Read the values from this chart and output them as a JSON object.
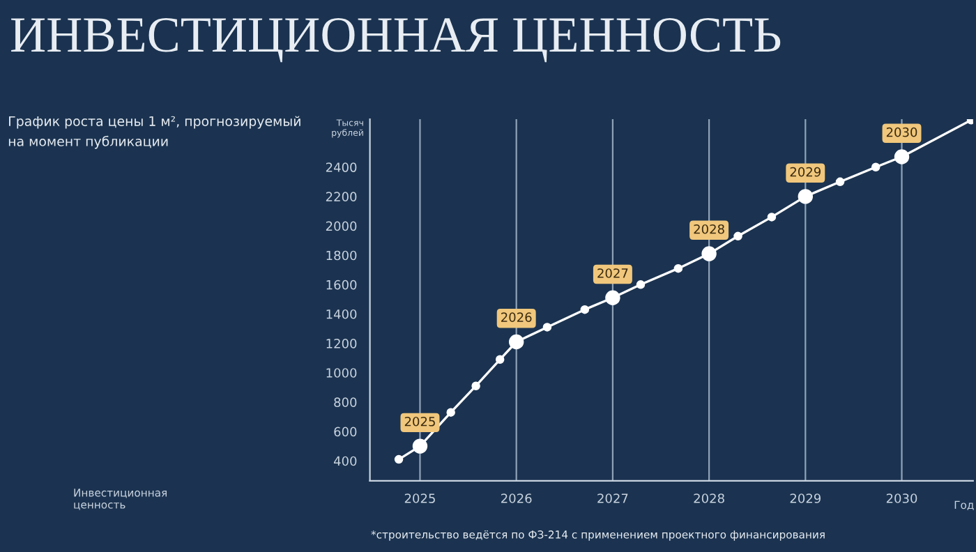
{
  "chart_data": {
    "type": "line",
    "title": "ИНВЕСТИЦИОННАЯ ЦЕННОСТЬ",
    "subtitle": "График роста цены 1 м², прогнозируемый\nна момент публикации",
    "xlabel": "Год",
    "ylabel": "Тысяч\nрублей",
    "series": [
      {
        "color": "#ffffff",
        "marker": "circle",
        "x": [
          2024.78,
          2025,
          2025.32,
          2025.58,
          2025.83,
          2026,
          2026.32,
          2026.71,
          2027,
          2027.29,
          2027.68,
          2028,
          2028.3,
          2028.65,
          2029,
          2029.36,
          2029.73,
          2030,
          2030.72
        ],
        "values": [
          410,
          500,
          730,
          910,
          1090,
          1210,
          1310,
          1430,
          1510,
          1600,
          1710,
          1810,
          1930,
          2060,
          2200,
          2300,
          2400,
          2470,
          2720
        ]
      },
      {
        "type": "scatter",
        "color": "#ffffff",
        "marker": "circle",
        "x": [
          2025,
          2026,
          2027,
          2028,
          2029,
          2030
        ],
        "values": [
          500,
          1210,
          1510,
          1810,
          2200,
          2470
        ]
      }
    ],
    "xlim": [
      2024.48,
      2030.74
    ],
    "xticks": [
      2025,
      2026,
      2027,
      2028,
      2029,
      2030
    ],
    "ylim": [
      264,
      2726
    ],
    "yticks": [
      400,
      600,
      800,
      1000,
      1200,
      1400,
      1600,
      1800,
      2000,
      2200,
      2400
    ],
    "grid": "x",
    "legend": false,
    "annotations": [
      {
        "text": "2025",
        "x": 2025,
        "y": 500
      },
      {
        "text": "2026",
        "x": 2026,
        "y": 1210
      },
      {
        "text": "2027",
        "x": 2027,
        "y": 1510
      },
      {
        "text": "2028",
        "x": 2028,
        "y": 1810
      },
      {
        "text": "2029",
        "x": 2029,
        "y": 2200
      },
      {
        "text": "2030",
        "x": 2030,
        "y": 2470
      },
      "Инвестиционная\nценность",
      "*строительство ведётся по ФЗ-214 с применением проектного финансирования"
    ]
  }
}
